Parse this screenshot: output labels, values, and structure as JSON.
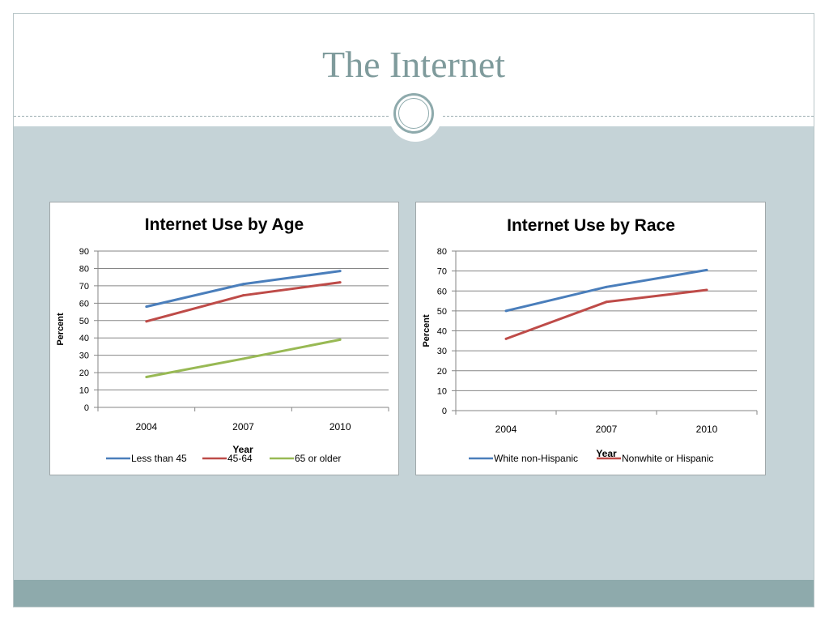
{
  "slide": {
    "title": "The Internet",
    "colors": {
      "content_band": "#c5d3d7",
      "footer_band": "#8eaaac",
      "title": "#7f9b9c"
    }
  },
  "chart_data": [
    {
      "type": "line",
      "title": "Internet Use by Age",
      "xlabel": "Year",
      "ylabel": "Percent",
      "categories": [
        "2004",
        "2007",
        "2010"
      ],
      "ylim": [
        0,
        90
      ],
      "yticks": [
        0,
        10,
        20,
        30,
        40,
        50,
        60,
        70,
        80,
        90
      ],
      "grid": true,
      "legend": "bottom",
      "series": [
        {
          "name": "Less than 45",
          "values": [
            58,
            71,
            78.5
          ],
          "color": "#4a7ebb"
        },
        {
          "name": "45-64",
          "values": [
            49.5,
            64.5,
            72
          ],
          "color": "#be4b48"
        },
        {
          "name": "65 or older",
          "values": [
            17.5,
            28,
            39
          ],
          "color": "#98b954"
        }
      ]
    },
    {
      "type": "line",
      "title": "Internet Use by Race",
      "xlabel": "Year",
      "ylabel": "Percent",
      "categories": [
        "2004",
        "2007",
        "2010"
      ],
      "ylim": [
        0,
        80
      ],
      "yticks": [
        0,
        10,
        20,
        30,
        40,
        50,
        60,
        70,
        80
      ],
      "grid": true,
      "legend": "bottom",
      "series": [
        {
          "name": "White non-Hispanic",
          "values": [
            50,
            62,
            70.5
          ],
          "color": "#4a7ebb"
        },
        {
          "name": "Nonwhite or Hispanic",
          "values": [
            36,
            54.5,
            60.5
          ],
          "color": "#be4b48"
        }
      ]
    }
  ]
}
